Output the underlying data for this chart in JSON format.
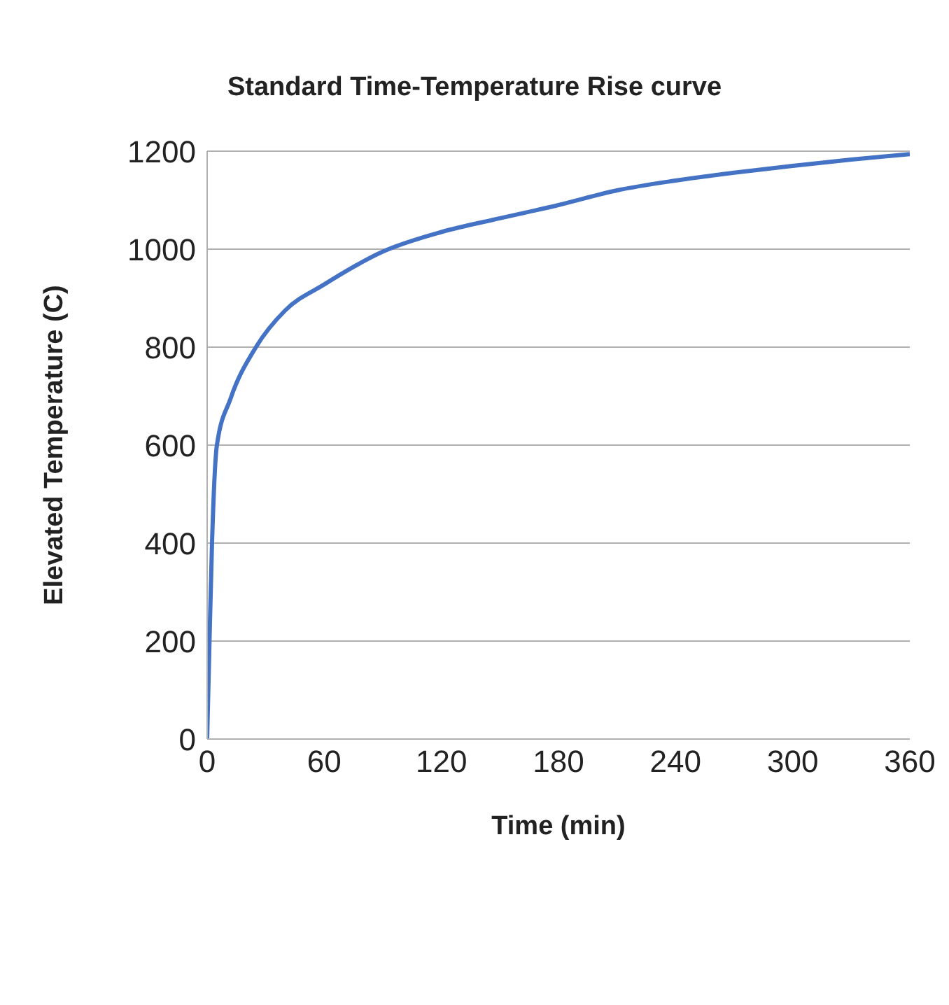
{
  "chart_data": {
    "type": "line",
    "title": "Standard Time-Temperature Rise curve",
    "xlabel": "Time (min)",
    "ylabel": "Elevated Temperature (C)",
    "x": [
      0,
      1.2,
      2.5,
      5,
      12,
      25,
      40,
      60,
      90,
      120,
      150,
      180,
      210,
      240,
      270,
      300,
      330,
      360
    ],
    "series": [
      {
        "color": "#4472c4",
        "values": [
          0,
          200,
          400,
          600,
          695,
          800,
          875,
          928,
          995,
          1035,
          1063,
          1090,
          1120,
          1140,
          1156,
          1170,
          1183,
          1194
        ]
      }
    ],
    "xlim": [
      0,
      360
    ],
    "xticks": [
      0,
      60,
      120,
      180,
      240,
      300,
      360
    ],
    "ylim": [
      0,
      1200
    ],
    "yticks": [
      0,
      200,
      400,
      600,
      800,
      1000,
      1200
    ],
    "grid": "y",
    "legend": false,
    "marker": "none",
    "line_style": "solid"
  }
}
